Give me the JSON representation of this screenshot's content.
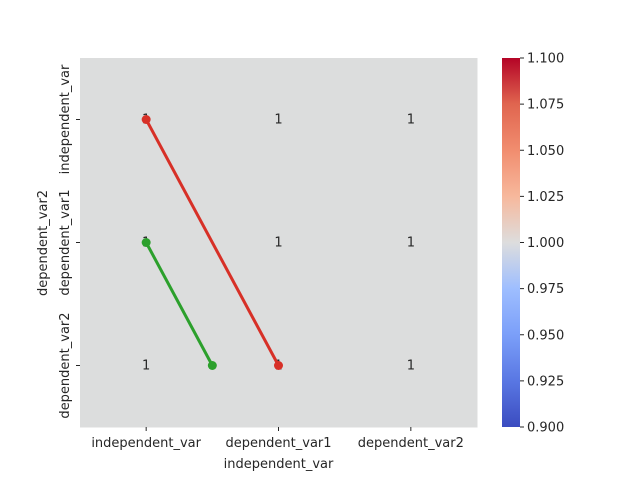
{
  "chart_data": {
    "type": "heatmap",
    "title": "",
    "xlabel": "independent_var",
    "ylabel": "dependent_var2",
    "x_categories": [
      "independent_var",
      "dependent_var1",
      "dependent_var2"
    ],
    "y_categories": [
      "independent_var",
      "dependent_var1",
      "dependent_var2"
    ],
    "values": [
      [
        1,
        1,
        1
      ],
      [
        1,
        1,
        1
      ],
      [
        1,
        1,
        1
      ]
    ],
    "cell_labels": [
      [
        "1",
        "1",
        "1"
      ],
      [
        "1",
        "1",
        "1"
      ],
      [
        "1",
        "1",
        "1"
      ]
    ],
    "cell_color": "#dcdddd",
    "colormap": "coolwarm",
    "colorbar": {
      "range": [
        0.9,
        1.1
      ],
      "ticks": [
        "0.900",
        "0.925",
        "0.950",
        "0.975",
        "1.000",
        "1.025",
        "1.050",
        "1.075",
        "1.100"
      ]
    },
    "overlay_lines": [
      {
        "color": "#d73027",
        "points": [
          [
            0.5,
            0.5
          ],
          [
            1.5,
            2.5
          ]
        ]
      },
      {
        "color": "#2ca02c",
        "points": [
          [
            0.5,
            1.5
          ],
          [
            1.0,
            2.5
          ]
        ]
      }
    ]
  }
}
